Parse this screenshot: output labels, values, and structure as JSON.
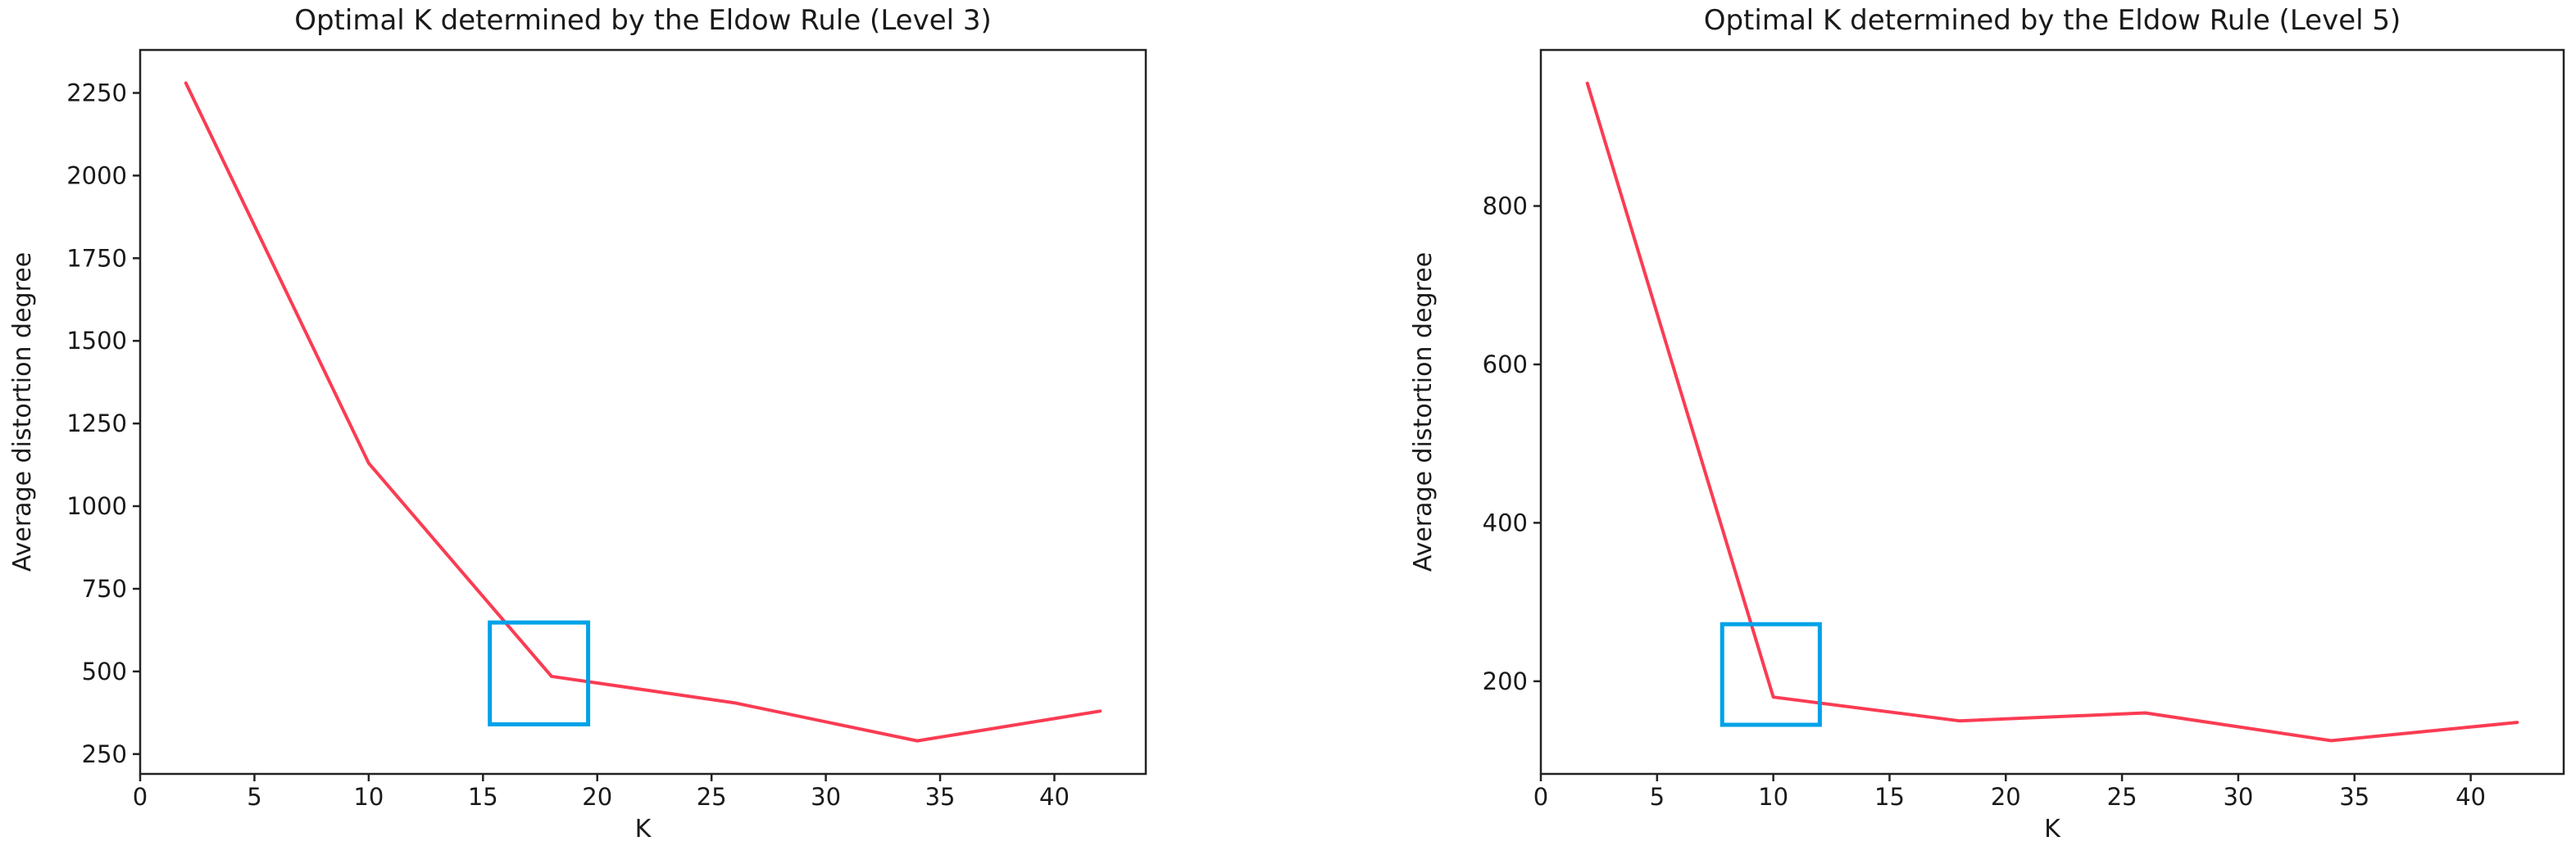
{
  "figure": {
    "background": "#ffffff",
    "axis_color": "#222222",
    "text_color": "#1a1a1a"
  },
  "chart_data": [
    {
      "type": "line",
      "title": "Optimal K determined by the Eldow Rule (Level 3)",
      "xlabel": "K",
      "ylabel": "Average distortion degree",
      "x": [
        2,
        10,
        18,
        26,
        34,
        42
      ],
      "y": [
        2280,
        1130,
        485,
        405,
        290,
        380
      ],
      "xlim": [
        0,
        44
      ],
      "ylim": [
        190,
        2380
      ],
      "x_ticks": [
        0,
        5,
        10,
        15,
        20,
        25,
        30,
        35,
        40
      ],
      "y_ticks": [
        250,
        500,
        750,
        1000,
        1250,
        1500,
        1750,
        2000,
        2250
      ],
      "grid": false,
      "legend": "none",
      "line_color": "#fa3c53",
      "highlight_rect": {
        "x0": 15.3,
        "x1": 19.6,
        "y0": 340,
        "y1": 648,
        "color": "#00a2e8"
      }
    },
    {
      "type": "line",
      "title": "Optimal K determined by the Eldow Rule (Level 5)",
      "xlabel": "K",
      "ylabel": "Average distortion degree",
      "x": [
        2,
        10,
        18,
        26,
        34,
        42
      ],
      "y": [
        955,
        180,
        150,
        160,
        125,
        148
      ],
      "xlim": [
        0,
        44
      ],
      "ylim": [
        83,
        997
      ],
      "x_ticks": [
        0,
        5,
        10,
        15,
        20,
        25,
        30,
        35,
        40
      ],
      "y_ticks": [
        200,
        400,
        600,
        800
      ],
      "grid": false,
      "legend": "none",
      "line_color": "#fa3c53",
      "highlight_rect": {
        "x0": 7.8,
        "x1": 12.0,
        "y0": 145,
        "y1": 272,
        "color": "#00a2e8"
      }
    }
  ]
}
